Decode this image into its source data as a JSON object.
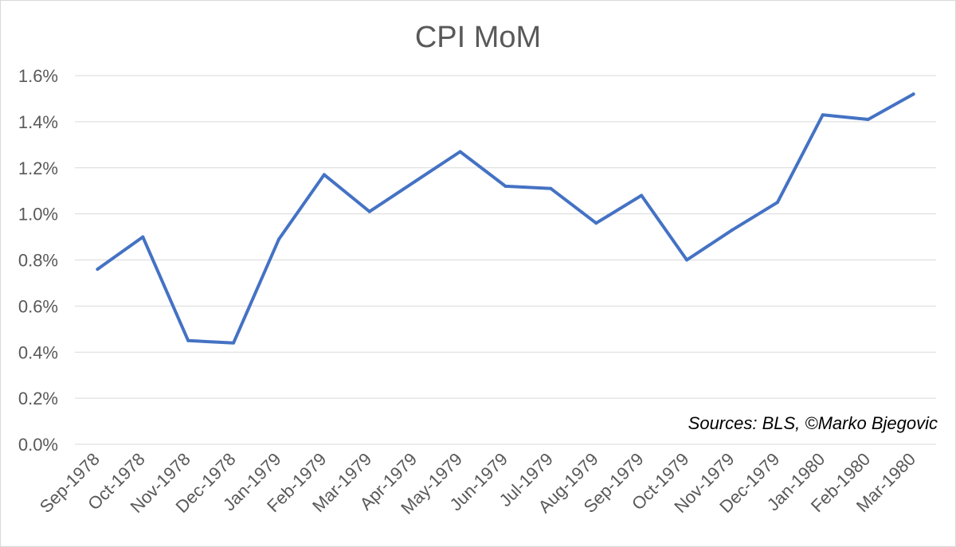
{
  "chart_data": {
    "type": "line",
    "title": "CPI MoM",
    "categories": [
      "Sep-1978",
      "Oct-1978",
      "Nov-1978",
      "Dec-1978",
      "Jan-1979",
      "Feb-1979",
      "Mar-1979",
      "Apr-1979",
      "May-1979",
      "Jun-1979",
      "Jul-1979",
      "Aug-1979",
      "Sep-1979",
      "Oct-1979",
      "Nov-1979",
      "Dec-1979",
      "Jan-1980",
      "Feb-1980",
      "Mar-1980"
    ],
    "series": [
      {
        "values": [
          0.76,
          0.9,
          0.45,
          0.44,
          0.89,
          1.17,
          1.01,
          1.14,
          1.27,
          1.12,
          1.11,
          0.96,
          1.08,
          0.8,
          0.93,
          1.05,
          1.43,
          1.41,
          1.52
        ],
        "color": "#4472c4"
      }
    ],
    "ylim": [
      0,
      1.6
    ],
    "ytick_labels": [
      "0.0%",
      "0.2%",
      "0.4%",
      "0.6%",
      "0.8%",
      "1.0%",
      "1.2%",
      "1.4%",
      "1.6%"
    ],
    "xlabel": "",
    "ylabel": "",
    "grid": true,
    "annotation": "Sources: BLS, ©Marko Bjegovic"
  }
}
